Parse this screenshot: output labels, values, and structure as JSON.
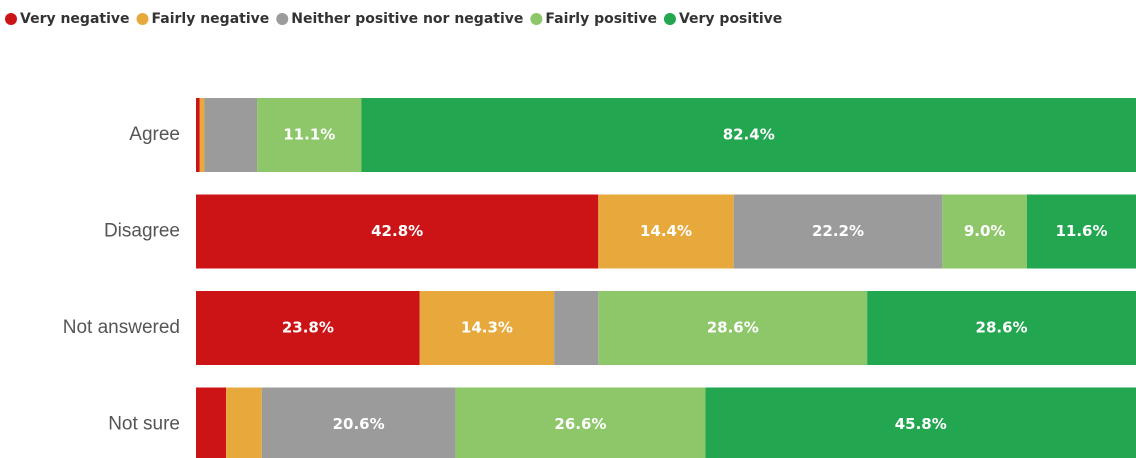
{
  "chart_data": {
    "type": "stacked-bar-horizontal",
    "categories": [
      "Agree",
      "Disagree",
      "Not answered",
      "Not sure"
    ],
    "xlim": [
      0,
      100
    ],
    "legend": "top-left",
    "series": [
      {
        "name": "Very negative",
        "color": "#cc1417",
        "values": [
          0.4,
          42.8,
          23.8,
          3.2
        ],
        "value_labels": [
          null,
          "42.8%",
          "23.8%",
          null
        ]
      },
      {
        "name": "Fairly negative",
        "color": "#e8a93c",
        "values": [
          0.5,
          14.4,
          14.3,
          3.8
        ],
        "value_labels": [
          null,
          "14.4%",
          "14.3%",
          null
        ]
      },
      {
        "name": "Neither positive nor negative",
        "color": "#9b9b9b",
        "values": [
          5.6,
          22.2,
          4.7,
          20.6
        ],
        "value_labels": [
          null,
          "22.2%",
          null,
          "20.6%"
        ]
      },
      {
        "name": "Fairly positive",
        "color": "#8dc76a",
        "values": [
          11.1,
          9.0,
          28.6,
          26.6
        ],
        "value_labels": [
          "11.1%",
          "9.0%",
          "28.6%",
          "26.6%"
        ]
      },
      {
        "name": "Very positive",
        "color": "#22a650",
        "values": [
          82.4,
          11.6,
          28.6,
          45.8
        ],
        "value_labels": [
          "82.4%",
          "11.6%",
          "28.6%",
          "45.8%"
        ]
      }
    ]
  }
}
